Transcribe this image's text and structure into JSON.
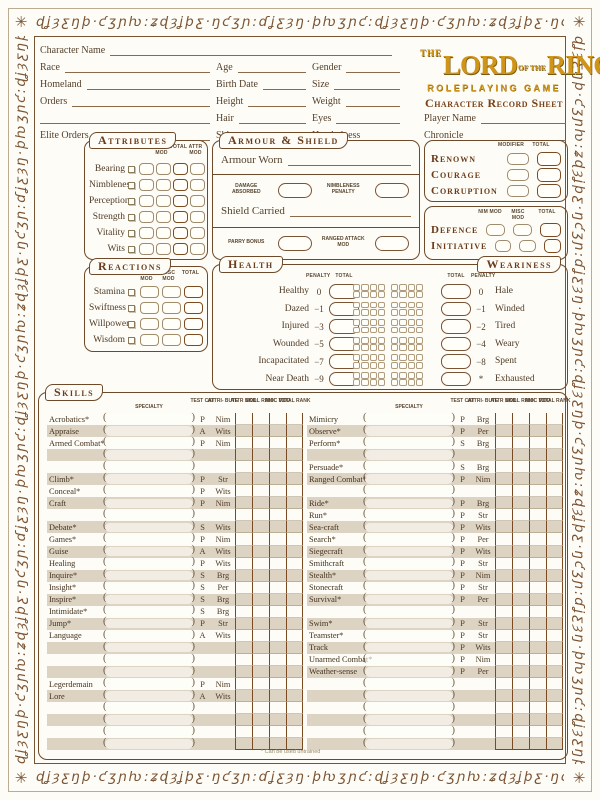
{
  "decor": {
    "script_segment": "ɖʝȝƹŋþ·ƈʒɲƕ:ʑɖȝʝþƹ·ŋƈʒɲ:ɗʝƹȝŋ·þƕʒɲƈ:",
    "corner_ornament": "✳"
  },
  "logo": {
    "the": "THE",
    "lord": "LORD",
    "of_the": "OF THE",
    "rings": "RINGS",
    "tagline": "ROLEPLAYING GAME",
    "sheet_title": "Character Record Sheet"
  },
  "header": {
    "character_name": "Character Name",
    "race": "Race",
    "homeland": "Homeland",
    "orders": "Orders",
    "elite_orders": "Elite Orders",
    "age": "Age",
    "birth_date": "Birth Date",
    "height": "Height",
    "hair": "Hair",
    "skin": "Skin",
    "gender": "Gender",
    "size": "Size",
    "weight": "Weight",
    "eyes": "Eyes",
    "handedness": "Handedness",
    "player_name": "Player Name",
    "chronicle": "Chronicle"
  },
  "sections": {
    "attributes": {
      "title": "Attributes",
      "columns": [
        "FAVOURED",
        "ORIG",
        "RACIAL MOD",
        "TOTAL",
        "ATTR MOD"
      ],
      "rows": [
        "Bearing",
        "Nimbleness",
        "Perception",
        "Strength",
        "Vitality",
        "Wits"
      ]
    },
    "armour": {
      "title": "Armour & Shield",
      "armour_worn": "Armour Worn",
      "damage_absorbed": "Damage Absorbed",
      "nimbleness_penalty": "Nimbleness Penalty",
      "shield_carried": "Shield Carried",
      "parry_bonus": "Parry Bonus",
      "ranged_attack_mod": "Ranged Attack Mod"
    },
    "renown": {
      "columns": [
        "MODIFIER",
        "TOTAL"
      ],
      "rows": [
        "Renown",
        "Courage",
        "Corruption"
      ]
    },
    "defence": {
      "columns": [
        "NIM MOD",
        "MISC MOD",
        "TOTAL"
      ],
      "rows": [
        "Defence",
        "Initiative"
      ]
    },
    "reactions": {
      "title": "Reactions",
      "columns": [
        "FAVOURED",
        "ATTR MOD",
        "MISC MOD",
        "TOTAL"
      ],
      "rows": [
        "Stamina",
        "Swiftness",
        "Willpower",
        "Wisdom"
      ]
    },
    "health": {
      "title": "Health",
      "penalty_label": "PENALTY",
      "total_label": "TOTAL",
      "rows": [
        {
          "label": "Healthy",
          "penalty": "0"
        },
        {
          "label": "Dazed",
          "penalty": "−1"
        },
        {
          "label": "Injured",
          "penalty": "−3"
        },
        {
          "label": "Wounded",
          "penalty": "−5"
        },
        {
          "label": "Incapacitated",
          "penalty": "−7"
        },
        {
          "label": "Near Death",
          "penalty": "−9"
        }
      ]
    },
    "weariness": {
      "title": "Weariness",
      "total_label": "TOTAL",
      "penalty_label": "PENALTY",
      "rows": [
        {
          "label": "Hale",
          "penalty": "0"
        },
        {
          "label": "Winded",
          "penalty": "−1"
        },
        {
          "label": "Tired",
          "penalty": "−2"
        },
        {
          "label": "Weary",
          "penalty": "−4"
        },
        {
          "label": "Spent",
          "penalty": "−8"
        },
        {
          "label": "Exhausted",
          "penalty": "*"
        }
      ]
    },
    "skills": {
      "title": "Skills",
      "columns": [
        "SPECIALTY",
        "TEST CAT",
        "ATTRI- BUTE",
        "ATTR MOD",
        "SKILL RANK",
        "MISC MOD",
        "TOTAL RANK"
      ],
      "footnote": "* Can be used untrained",
      "left": [
        {
          "name": "Acrobatics*",
          "cat": "P",
          "attr": "Nim"
        },
        {
          "name": "Appraise",
          "cat": "A",
          "attr": "Wits"
        },
        {
          "name": "Armed Combat*",
          "cat": "P",
          "attr": "Nim"
        },
        {
          "name": "",
          "cat": "",
          "attr": ""
        },
        {
          "name": "",
          "cat": "",
          "attr": ""
        },
        {
          "name": "Climb*",
          "cat": "P",
          "attr": "Str"
        },
        {
          "name": "Conceal*",
          "cat": "P",
          "attr": "Wits"
        },
        {
          "name": "Craft",
          "cat": "P",
          "attr": "Nim"
        },
        {
          "name": "",
          "cat": "",
          "attr": ""
        },
        {
          "name": "Debate*",
          "cat": "S",
          "attr": "Wits"
        },
        {
          "name": "Games*",
          "cat": "P",
          "attr": "Nim"
        },
        {
          "name": "Guise",
          "cat": "A",
          "attr": "Wits"
        },
        {
          "name": "Healing",
          "cat": "P",
          "attr": "Wits"
        },
        {
          "name": "Inquire*",
          "cat": "S",
          "attr": "Brg"
        },
        {
          "name": "Insight*",
          "cat": "S",
          "attr": "Per"
        },
        {
          "name": "Inspire*",
          "cat": "S",
          "attr": "Brg"
        },
        {
          "name": "Intimidate*",
          "cat": "S",
          "attr": "Brg"
        },
        {
          "name": "Jump*",
          "cat": "P",
          "attr": "Str"
        },
        {
          "name": "Language",
          "cat": "A",
          "attr": "Wits"
        },
        {
          "name": "",
          "cat": "",
          "attr": ""
        },
        {
          "name": "",
          "cat": "",
          "attr": ""
        },
        {
          "name": "",
          "cat": "",
          "attr": ""
        },
        {
          "name": "Legerdemain",
          "cat": "P",
          "attr": "Nim"
        },
        {
          "name": "Lore",
          "cat": "A",
          "attr": "Wits"
        },
        {
          "name": "",
          "cat": "",
          "attr": ""
        },
        {
          "name": "",
          "cat": "",
          "attr": ""
        },
        {
          "name": "",
          "cat": "",
          "attr": ""
        },
        {
          "name": "",
          "cat": "",
          "attr": ""
        }
      ],
      "right": [
        {
          "name": "Mimicry",
          "cat": "P",
          "attr": "Brg"
        },
        {
          "name": "Observe*",
          "cat": "P",
          "attr": "Per"
        },
        {
          "name": "Perform*",
          "cat": "S",
          "attr": "Brg"
        },
        {
          "name": "",
          "cat": "",
          "attr": ""
        },
        {
          "name": "Persuade*",
          "cat": "S",
          "attr": "Brg"
        },
        {
          "name": "Ranged Combat*",
          "cat": "P",
          "attr": "Nim"
        },
        {
          "name": "",
          "cat": "",
          "attr": ""
        },
        {
          "name": "Ride*",
          "cat": "P",
          "attr": "Brg"
        },
        {
          "name": "Run*",
          "cat": "P",
          "attr": "Str"
        },
        {
          "name": "Sea-craft",
          "cat": "P",
          "attr": "Wits"
        },
        {
          "name": "Search*",
          "cat": "P",
          "attr": "Per"
        },
        {
          "name": "Siegecraft",
          "cat": "P",
          "attr": "Wits"
        },
        {
          "name": "Smithcraft",
          "cat": "P",
          "attr": "Str"
        },
        {
          "name": "Stealth*",
          "cat": "P",
          "attr": "Nim"
        },
        {
          "name": "Stonecraft",
          "cat": "P",
          "attr": "Str"
        },
        {
          "name": "Survival*",
          "cat": "P",
          "attr": "Per"
        },
        {
          "name": "",
          "cat": "",
          "attr": ""
        },
        {
          "name": "Swim*",
          "cat": "P",
          "attr": "Str"
        },
        {
          "name": "Teamster*",
          "cat": "P",
          "attr": "Str"
        },
        {
          "name": "Track",
          "cat": "P",
          "attr": "Wits"
        },
        {
          "name": "Unarmed Combat*",
          "cat": "P",
          "attr": "Nim"
        },
        {
          "name": "Weather-sense",
          "cat": "P",
          "attr": "Per"
        },
        {
          "name": "",
          "cat": "",
          "attr": ""
        },
        {
          "name": "",
          "cat": "",
          "attr": ""
        },
        {
          "name": "",
          "cat": "",
          "attr": ""
        },
        {
          "name": "",
          "cat": "",
          "attr": ""
        },
        {
          "name": "",
          "cat": "",
          "attr": ""
        },
        {
          "name": "",
          "cat": "",
          "attr": ""
        }
      ]
    }
  }
}
